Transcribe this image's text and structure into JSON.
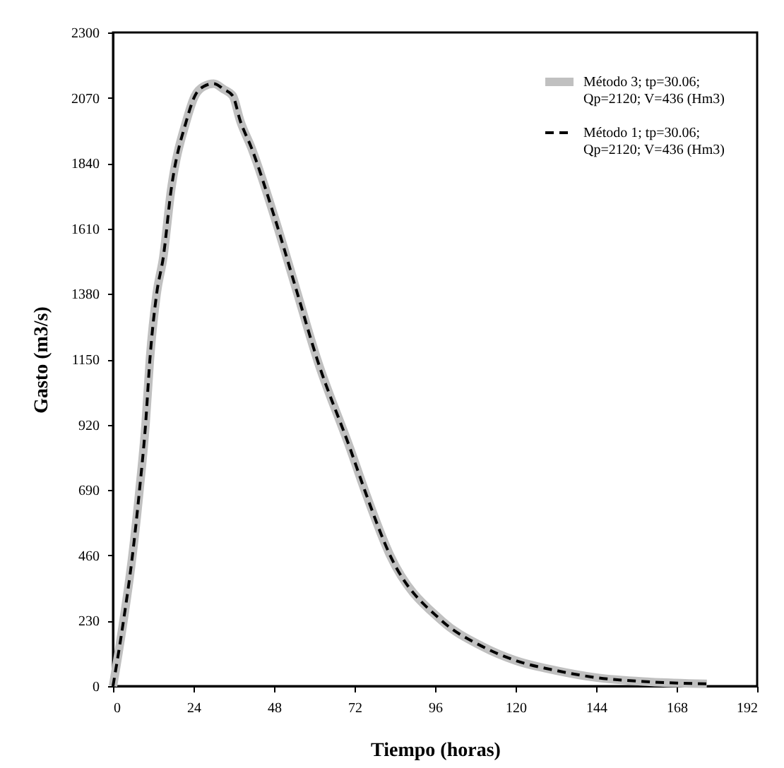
{
  "chart_data": {
    "type": "line",
    "xlabel": "Tiempo (horas)",
    "ylabel": "Gasto (m3/s)",
    "x": [
      0,
      3,
      5.8,
      7.9,
      9.7,
      11,
      13,
      15,
      17.3,
      21.9,
      24.4,
      27,
      30,
      33,
      35.7,
      37.9,
      41.3,
      48.3,
      54.6,
      60.9,
      70.7,
      75,
      82.6,
      98,
      110,
      120,
      132,
      144,
      160,
      177
    ],
    "series": [
      {
        "name": "Método 3; tp=30.06; Qp=2120; V=436 (Hm3)",
        "color": "#c0c0c0",
        "line_style": "solid",
        "values": [
          0,
          220,
          460,
          690,
          920,
          1150,
          1380,
          1510,
          1744,
          1990,
          2077,
          2110,
          2120,
          2100,
          2077,
          1990,
          1893,
          1644,
          1396,
          1148,
          835,
          690,
          460,
          230,
          140,
          90,
          55,
          30,
          15,
          8
        ]
      },
      {
        "name": "Método 1; tp=30.06; Qp=2120; V=436 (Hm3)",
        "color": "#000000",
        "line_style": "dashed",
        "values": [
          0,
          220,
          460,
          690,
          920,
          1150,
          1380,
          1510,
          1744,
          1990,
          2077,
          2110,
          2120,
          2100,
          2077,
          1990,
          1893,
          1644,
          1396,
          1148,
          835,
          690,
          460,
          230,
          140,
          90,
          55,
          30,
          15,
          8
        ]
      }
    ],
    "xlim": [
      0,
      192
    ],
    "xticks": [
      0,
      24,
      48,
      72,
      96,
      120,
      144,
      168,
      192
    ],
    "ylim": [
      0,
      2300
    ],
    "yticks": [
      0,
      230,
      460,
      690,
      920,
      1150,
      1380,
      1610,
      1840,
      2070,
      2300
    ],
    "grid": false,
    "legend": "top right",
    "marker": "none"
  }
}
